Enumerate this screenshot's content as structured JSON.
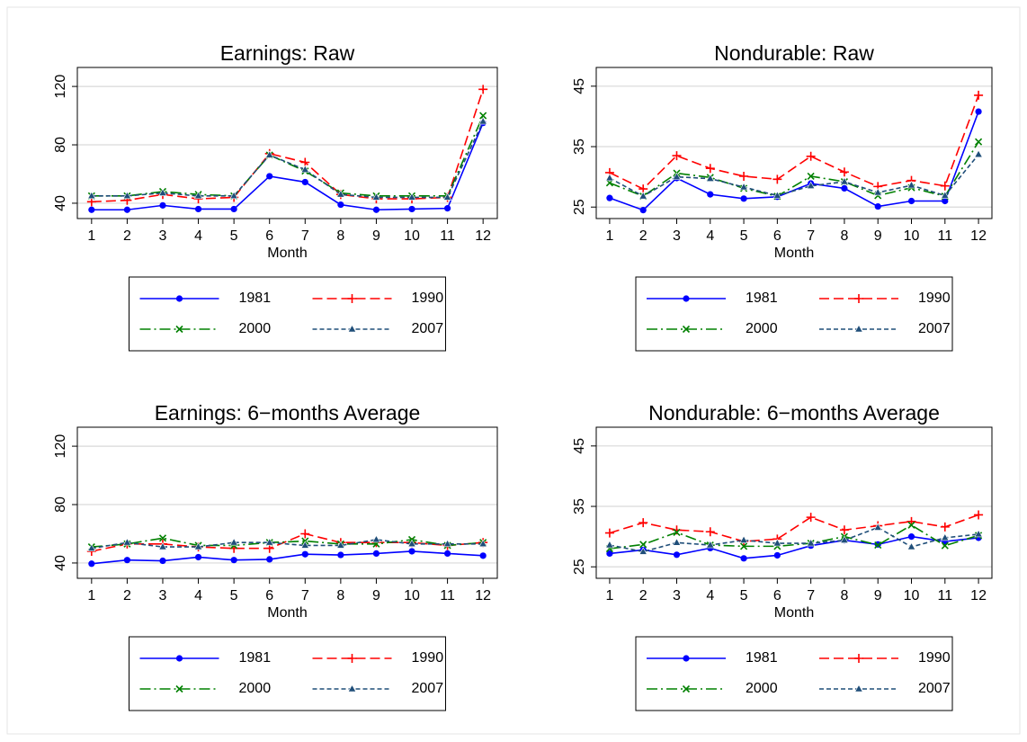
{
  "chart_data": [
    {
      "type": "line",
      "title": "Earnings: Raw",
      "xlabel": "Month",
      "x": [
        1,
        2,
        3,
        4,
        5,
        6,
        7,
        8,
        9,
        10,
        11,
        12
      ],
      "xlim": [
        0.6,
        12.4
      ],
      "xticks": [
        1,
        2,
        3,
        4,
        5,
        6,
        7,
        8,
        9,
        10,
        11,
        12
      ],
      "ylim": [
        29.5,
        133
      ],
      "yticks": [
        40,
        80,
        120
      ],
      "grid": true,
      "series": [
        {
          "name": "1981",
          "color": "#0000ff",
          "dash": "solid",
          "marker": "circle",
          "values": [
            35.5,
            35.5,
            38.5,
            36,
            36,
            58.5,
            54.5,
            39,
            35.5,
            36,
            36.5,
            95
          ]
        },
        {
          "name": "1990",
          "color": "#ff0000",
          "dash": "long",
          "marker": "plus",
          "values": [
            41,
            42,
            46,
            43,
            44,
            74,
            68,
            46,
            43,
            43,
            44,
            118
          ]
        },
        {
          "name": "2000",
          "color": "#008000",
          "dash": "dashdot",
          "marker": "x",
          "values": [
            45,
            45,
            48,
            46,
            45,
            73,
            62,
            47,
            45,
            45,
            45,
            100
          ]
        },
        {
          "name": "2007",
          "color": "#1f4e79",
          "dash": "short",
          "marker": "triangle",
          "values": [
            45,
            45,
            47,
            45,
            45,
            73,
            63,
            46,
            44,
            44,
            44,
            96
          ]
        }
      ]
    },
    {
      "type": "line",
      "title": "Nondurable: Raw",
      "xlabel": "Month",
      "x": [
        1,
        2,
        3,
        4,
        5,
        6,
        7,
        8,
        9,
        10,
        11,
        12
      ],
      "xlim": [
        0.6,
        12.4
      ],
      "xticks": [
        1,
        2,
        3,
        4,
        5,
        6,
        7,
        8,
        9,
        10,
        11,
        12
      ],
      "ylim": [
        23.1,
        48.1
      ],
      "yticks": [
        25,
        35,
        45
      ],
      "grid": true,
      "series": [
        {
          "name": "1981",
          "color": "#0000ff",
          "dash": "solid",
          "marker": "circle",
          "values": [
            26.5,
            24.5,
            29.8,
            27.1,
            26.4,
            26.7,
            28.9,
            28.1,
            25.1,
            26,
            26,
            40.8
          ]
        },
        {
          "name": "1990",
          "color": "#ff0000",
          "dash": "long",
          "marker": "plus",
          "values": [
            30.7,
            28,
            33.5,
            31.4,
            30.1,
            29.6,
            33.4,
            30.8,
            28.4,
            29.4,
            28.5,
            43.5
          ]
        },
        {
          "name": "2000",
          "color": "#008000",
          "dash": "dashdot",
          "marker": "x",
          "values": [
            29,
            26.8,
            30.6,
            29.9,
            28.1,
            26.8,
            30.1,
            29.2,
            26.9,
            28.2,
            26.8,
            35.8
          ]
        },
        {
          "name": "2007",
          "color": "#1f4e79",
          "dash": "short",
          "marker": "triangle",
          "values": [
            29.8,
            26.8,
            30,
            29.7,
            28.3,
            26.9,
            28.5,
            29.2,
            27.4,
            28.6,
            26.9,
            33.7
          ]
        }
      ]
    },
    {
      "type": "line",
      "title": "Earnings: 6−months Average",
      "xlabel": "Month",
      "x": [
        1,
        2,
        3,
        4,
        5,
        6,
        7,
        8,
        9,
        10,
        11,
        12
      ],
      "xlim": [
        0.6,
        12.4
      ],
      "xticks": [
        1,
        2,
        3,
        4,
        5,
        6,
        7,
        8,
        9,
        10,
        11,
        12
      ],
      "ylim": [
        29.5,
        133
      ],
      "yticks": [
        40,
        80,
        120
      ],
      "grid": true,
      "series": [
        {
          "name": "1981",
          "color": "#0000ff",
          "dash": "solid",
          "marker": "circle",
          "values": [
            39.5,
            42,
            41.5,
            44,
            42,
            42.5,
            46,
            45.5,
            46.5,
            48,
            46.5,
            45
          ]
        },
        {
          "name": "1990",
          "color": "#ff0000",
          "dash": "long",
          "marker": "plus",
          "values": [
            48,
            53,
            53,
            51,
            50,
            50,
            60,
            54,
            54,
            54,
            52,
            54
          ]
        },
        {
          "name": "2000",
          "color": "#008000",
          "dash": "dashdot",
          "marker": "x",
          "values": [
            51,
            53,
            57,
            52,
            52,
            54,
            55,
            53,
            53,
            56,
            52,
            54
          ]
        },
        {
          "name": "2007",
          "color": "#1f4e79",
          "dash": "short",
          "marker": "triangle",
          "values": [
            50,
            54,
            51,
            51,
            54,
            54,
            52,
            52,
            56,
            53,
            53,
            53
          ]
        }
      ]
    },
    {
      "type": "line",
      "title": "Nondurable: 6−months Average",
      "xlabel": "Month",
      "x": [
        1,
        2,
        3,
        4,
        5,
        6,
        7,
        8,
        9,
        10,
        11,
        12
      ],
      "xlim": [
        0.6,
        12.4
      ],
      "xticks": [
        1,
        2,
        3,
        4,
        5,
        6,
        7,
        8,
        9,
        10,
        11,
        12
      ],
      "ylim": [
        23.1,
        48.1
      ],
      "yticks": [
        25,
        35,
        45
      ],
      "grid": true,
      "series": [
        {
          "name": "1981",
          "color": "#0000ff",
          "dash": "solid",
          "marker": "circle",
          "values": [
            27.2,
            27.8,
            27,
            28.1,
            26.4,
            26.9,
            28.5,
            29.4,
            28.7,
            30,
            29.2,
            29.8
          ]
        },
        {
          "name": "1990",
          "color": "#ff0000",
          "dash": "long",
          "marker": "plus",
          "values": [
            30.6,
            32.3,
            31.1,
            30.8,
            29.2,
            29.6,
            33.2,
            31.1,
            31.8,
            32.5,
            31.6,
            33.6
          ]
        },
        {
          "name": "2000",
          "color": "#008000",
          "dash": "dashdot",
          "marker": "x",
          "values": [
            28,
            28.7,
            30.7,
            28.6,
            28.4,
            28.4,
            28.9,
            30,
            28.6,
            31.9,
            28.5,
            30.2
          ]
        },
        {
          "name": "2007",
          "color": "#1f4e79",
          "dash": "short",
          "marker": "triangle",
          "values": [
            28.6,
            27.5,
            29,
            28.6,
            29.4,
            28.9,
            28.9,
            29.4,
            31.5,
            28.3,
            29.8,
            30.4
          ]
        }
      ]
    }
  ]
}
